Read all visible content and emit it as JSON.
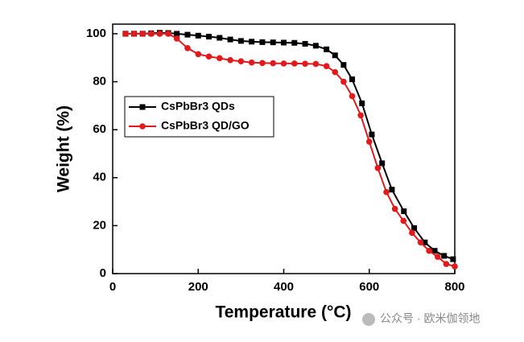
{
  "chart_data": {
    "type": "line",
    "x_label": "Temperature (°C)",
    "y_label": "Weight (%)",
    "xlim": [
      0,
      800
    ],
    "xticks": [
      0,
      200,
      400,
      600,
      800
    ],
    "ylim": [
      0,
      104
    ],
    "yticks": [
      0,
      20,
      40,
      60,
      80,
      100
    ],
    "legend": "upper-left",
    "watermark": "公众号 · 欧米伽领地",
    "series": [
      {
        "name": "CsPbBr3 QDs",
        "color": "#000000",
        "marker": "square",
        "x": [
          30,
          50,
          70,
          90,
          110,
          130,
          150,
          175,
          200,
          225,
          250,
          275,
          300,
          325,
          350,
          375,
          400,
          425,
          450,
          475,
          500,
          520,
          540,
          560,
          583,
          606,
          630,
          653,
          681,
          705,
          730,
          753,
          775,
          796
        ],
        "values": [
          100,
          100,
          100,
          100.2,
          100.4,
          100.3,
          100,
          99.6,
          99.2,
          98.8,
          98.3,
          97.6,
          97,
          96.7,
          96.5,
          96.4,
          96.3,
          96.2,
          95.8,
          95,
          93.5,
          91,
          87,
          81,
          71,
          58,
          46,
          35,
          26,
          19,
          13,
          9.5,
          7.4,
          6
        ]
      },
      {
        "name": "CsPbBr3 QD/GO",
        "color": "#e31a1c",
        "marker": "circle",
        "x": [
          30,
          50,
          70,
          90,
          110,
          130,
          150,
          175,
          200,
          225,
          250,
          275,
          300,
          325,
          350,
          375,
          400,
          425,
          450,
          475,
          500,
          520,
          540,
          560,
          580,
          600,
          620,
          640,
          660,
          680,
          700,
          720,
          740,
          760,
          780,
          800
        ],
        "values": [
          100,
          100,
          100,
          100,
          100,
          100,
          98,
          94,
          91.5,
          90.5,
          89.8,
          89,
          88.5,
          88,
          87.8,
          87.7,
          87.6,
          87.6,
          87.5,
          87.4,
          86.5,
          84,
          80,
          74,
          66,
          55,
          44,
          34,
          27,
          22,
          17,
          13,
          9.5,
          7,
          4,
          3
        ]
      }
    ]
  }
}
